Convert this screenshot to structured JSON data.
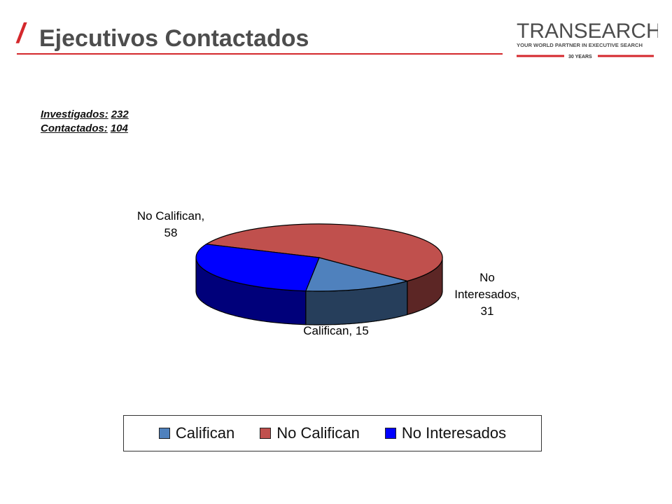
{
  "header": {
    "title": "Ejecutivos Contactados",
    "slash": "/"
  },
  "logo": {
    "name": "TRANSEARCH",
    "tagline": "YOUR WORLD PARTNER IN EXECUTIVE SEARCH",
    "years": "30 YEARS"
  },
  "stats": {
    "investigados_label": "Investigados:",
    "investigados_value": "232",
    "contactados_label": "Contactados:",
    "contactados_value": "104"
  },
  "chart_data": {
    "type": "pie",
    "categories": [
      "Califican",
      "No Califican",
      "No Interesados"
    ],
    "values": [
      15,
      58,
      31
    ],
    "labels": [
      "Califican, 15",
      "No Califican, 58",
      "No Interesados, 31"
    ],
    "colors": [
      "#4f81bd",
      "#c0504d",
      "#0000ff"
    ],
    "legend": "bottom"
  }
}
